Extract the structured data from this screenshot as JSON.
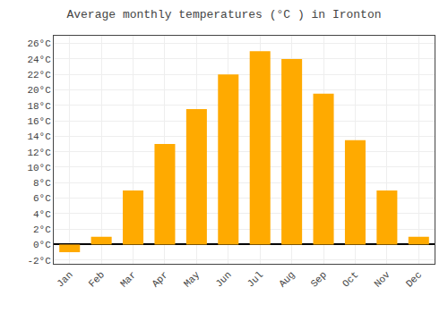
{
  "chart_data": {
    "type": "bar",
    "title": "Average monthly temperatures (°C ) in Ironton",
    "categories": [
      "Jan",
      "Feb",
      "Mar",
      "Apr",
      "May",
      "Jun",
      "Jul",
      "Aug",
      "Sep",
      "Oct",
      "Nov",
      "Dec"
    ],
    "values": [
      -1.0,
      1.0,
      7.0,
      13.0,
      17.5,
      22.0,
      25.0,
      24.0,
      19.5,
      13.5,
      7.0,
      1.0
    ],
    "color": "#FFAA00",
    "ylim": [
      -2.5,
      27
    ],
    "yticks": [
      {
        "value": -2,
        "label": "-2°C"
      },
      {
        "value": 0,
        "label": "0°C"
      },
      {
        "value": 2,
        "label": "2°C"
      },
      {
        "value": 4,
        "label": "4°C"
      },
      {
        "value": 6,
        "label": "6°C"
      },
      {
        "value": 8,
        "label": "8°C"
      },
      {
        "value": 10,
        "label": "10°C"
      },
      {
        "value": 12,
        "label": "12°C"
      },
      {
        "value": 14,
        "label": "14°C"
      },
      {
        "value": 16,
        "label": "16°C"
      },
      {
        "value": 18,
        "label": "18°C"
      },
      {
        "value": 20,
        "label": "20°C"
      },
      {
        "value": 22,
        "label": "22°C"
      },
      {
        "value": 24,
        "label": "24°C"
      },
      {
        "value": 26,
        "label": "26°C"
      }
    ],
    "grid": true
  }
}
